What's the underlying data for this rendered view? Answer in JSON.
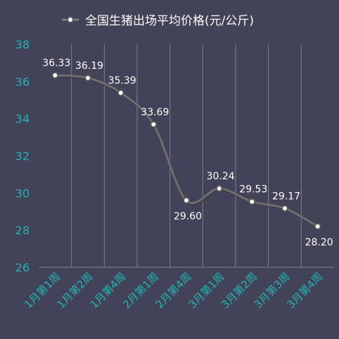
{
  "chart_data": {
    "type": "line",
    "legend": {
      "label": "全国生猪出场平均价格(元/公斤)",
      "placement": "top"
    },
    "categories": [
      "1月第1周",
      "1月第2周",
      "1月第4周",
      "2月第1周",
      "2月第4周",
      "3月第1周",
      "3月第2周",
      "3月第3周",
      "3月第4周"
    ],
    "series": [
      {
        "name": "全国生猪出场平均价格(元/公斤)",
        "values": [
          36.33,
          36.19,
          35.39,
          33.69,
          29.6,
          30.24,
          29.53,
          29.17,
          28.2
        ],
        "labels": [
          "36.33",
          "36.19",
          "35.39",
          "33.69",
          "29.60",
          "30.24",
          "29.53",
          "29.17",
          "28.20"
        ]
      }
    ],
    "ylim": [
      26,
      38
    ],
    "yticks": [
      26,
      28,
      30,
      32,
      34,
      36,
      38
    ],
    "grid": "vertical",
    "colors": {
      "background": "#424259",
      "line": "#6e6e6e",
      "axis_text": "#1fb5b0",
      "label_text": "#ffffff",
      "grid": "#7d7d92"
    }
  }
}
